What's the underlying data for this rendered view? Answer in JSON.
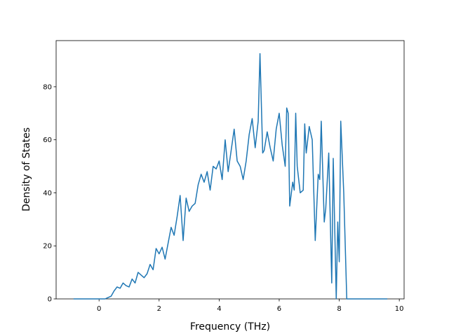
{
  "chart_data": {
    "type": "line",
    "xlabel": "Frequency (THz)",
    "ylabel": "Density of States",
    "xlim": [
      -1.43,
      10.16
    ],
    "ylim": [
      0,
      97.4
    ],
    "xticks": [
      0,
      2,
      4,
      6,
      8,
      10
    ],
    "yticks": [
      0,
      20,
      40,
      60,
      80
    ],
    "series": [
      {
        "color": "#1f77b4",
        "x": [
          -0.85,
          0.0,
          0.1,
          0.2,
          0.3,
          0.4,
          0.5,
          0.6,
          0.7,
          0.8,
          0.9,
          1.0,
          1.1,
          1.2,
          1.3,
          1.4,
          1.5,
          1.6,
          1.7,
          1.8,
          1.9,
          2.0,
          2.1,
          2.2,
          2.3,
          2.4,
          2.5,
          2.6,
          2.7,
          2.8,
          2.9,
          3.0,
          3.1,
          3.2,
          3.3,
          3.4,
          3.5,
          3.6,
          3.7,
          3.8,
          3.9,
          4.0,
          4.1,
          4.2,
          4.3,
          4.4,
          4.5,
          4.6,
          4.7,
          4.8,
          4.9,
          5.0,
          5.1,
          5.2,
          5.3,
          5.36,
          5.45,
          5.5,
          5.6,
          5.7,
          5.8,
          5.9,
          6.0,
          6.1,
          6.2,
          6.25,
          6.3,
          6.35,
          6.45,
          6.5,
          6.55,
          6.6,
          6.7,
          6.8,
          6.85,
          6.9,
          7.0,
          7.1,
          7.2,
          7.3,
          7.35,
          7.4,
          7.5,
          7.55,
          7.65,
          7.75,
          7.8,
          7.9,
          7.95,
          8.0,
          8.05,
          8.15,
          8.25,
          9.6
        ],
        "values": [
          0,
          0,
          0,
          0,
          0.5,
          1,
          3,
          4.5,
          4,
          6,
          5,
          4.5,
          7.5,
          6,
          10,
          9,
          8,
          9.5,
          13,
          11,
          19,
          17,
          19.5,
          15,
          21,
          27,
          24,
          31,
          39,
          22,
          38,
          33,
          35,
          36,
          43,
          47,
          44,
          48,
          41,
          50,
          49,
          52,
          45,
          60,
          48,
          56,
          64,
          52,
          50,
          45,
          52,
          62,
          68,
          57,
          67,
          92.5,
          55,
          56,
          63,
          57,
          52,
          64,
          70,
          58,
          50,
          72,
          70,
          35,
          44,
          41,
          70,
          50,
          40,
          41,
          66,
          55,
          65,
          60,
          22,
          47,
          45,
          67,
          29,
          34,
          55,
          6,
          53,
          0,
          29,
          14,
          67,
          40,
          0,
          0
        ]
      }
    ]
  }
}
